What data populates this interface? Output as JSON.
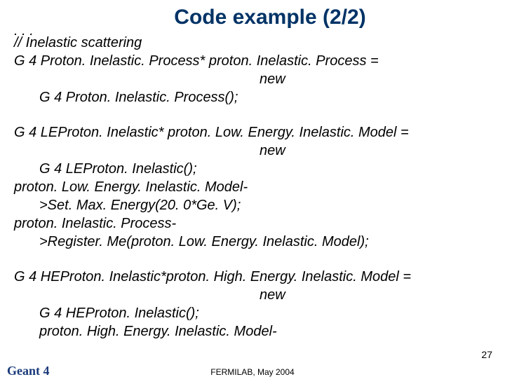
{
  "title": "Code example (2/2)",
  "ellipsis": ". . .",
  "block1": {
    "l1": "// Inelastic scattering",
    "l2": "G 4 Proton. Inelastic. Process* proton. Inelastic. Process =",
    "l3": "new",
    "l4": "G 4 Proton. Inelastic. Process();"
  },
  "block2": {
    "l1": "G 4 LEProton. Inelastic* proton. Low. Energy. Inelastic. Model =",
    "l2": "new",
    "l3": "G 4 LEProton. Inelastic();",
    "l4": "proton. Low. Energy. Inelastic. Model-",
    "l5": ">Set. Max. Energy(20. 0*Ge. V);",
    "l6": "proton. Inelastic. Process-",
    "l7": ">Register. Me(proton. Low. Energy. Inelastic. Model);"
  },
  "block3": {
    "l1": "G 4 HEProton. Inelastic*proton. High. Energy. Inelastic. Model =",
    "l2": "new",
    "l3": "G 4 HEProton. Inelastic();",
    "l4": "proton. High. Energy. Inelastic. Model-"
  },
  "page_number": "27",
  "footer": "FERMILAB, May 2004",
  "logo": "Geant 4"
}
